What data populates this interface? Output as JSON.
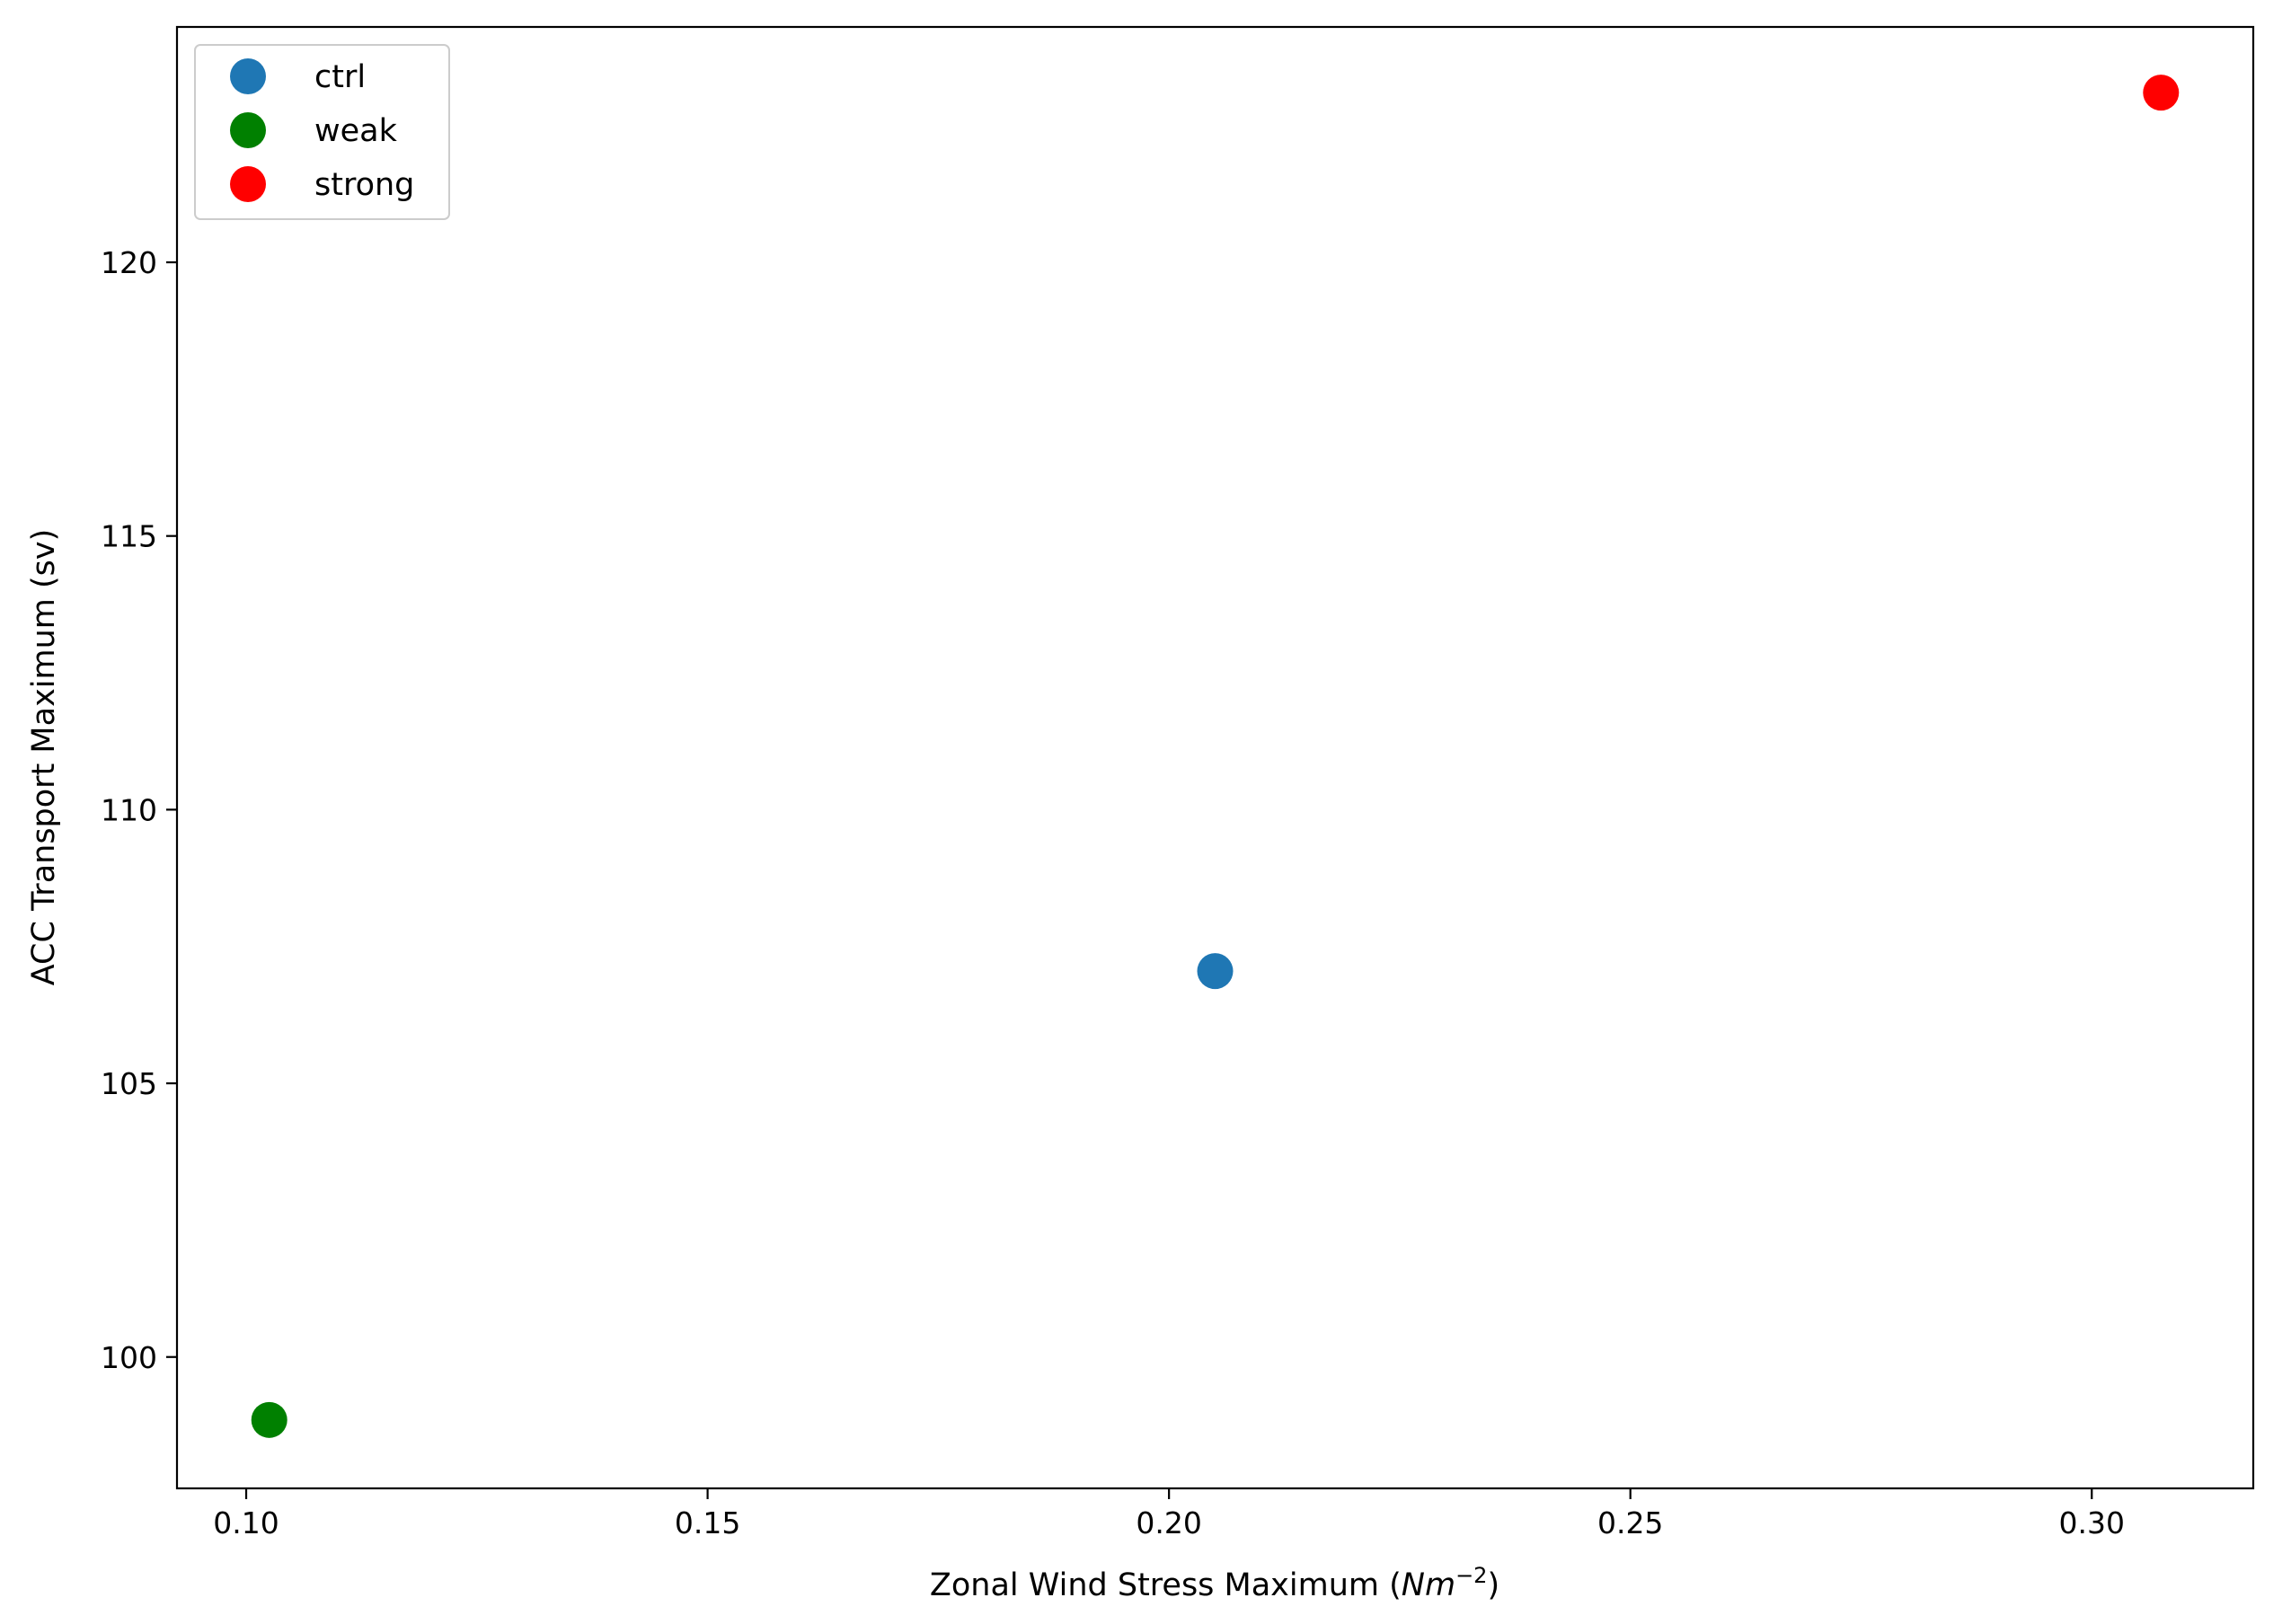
{
  "chart_data": {
    "type": "scatter",
    "title": "",
    "xlabel_main": "Zonal Wind Stress Maximum (",
    "xlabel_math": "Nm",
    "xlabel_exp": "−2",
    "xlabel_close": ")",
    "ylabel": "ACC Transport Maximum (sv)",
    "xlim": [
      0.0925,
      0.3175
    ],
    "ylim": [
      97.6,
      124.3
    ],
    "xticks": [
      0.1,
      0.15,
      0.2,
      0.25,
      0.3
    ],
    "xtick_labels": [
      "0.10",
      "0.15",
      "0.20",
      "0.25",
      "0.30"
    ],
    "yticks": [
      100,
      105,
      110,
      115,
      120
    ],
    "ytick_labels": [
      "100",
      "105",
      "110",
      "115",
      "120"
    ],
    "grid": false,
    "legend_position": "top-left",
    "series": [
      {
        "name": "ctrl",
        "color": "#1f77b4",
        "points": [
          {
            "x": 0.205,
            "y": 107.05
          }
        ]
      },
      {
        "name": "weak",
        "color": "#008000",
        "points": [
          {
            "x": 0.1025,
            "y": 98.85
          }
        ]
      },
      {
        "name": "strong",
        "color": "#ff0000",
        "points": [
          {
            "x": 0.3075,
            "y": 123.1
          }
        ]
      }
    ]
  }
}
